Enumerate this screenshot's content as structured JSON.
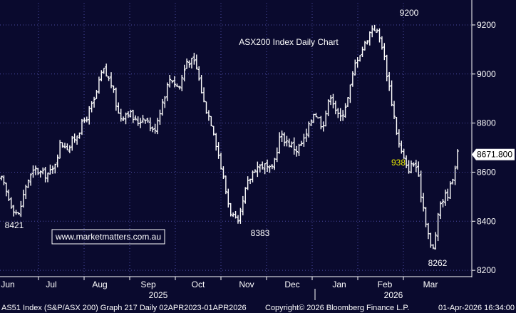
{
  "chart_data": {
    "type": "ohlc",
    "title": "ASX200 Index Daily Chart",
    "watermark": "www.marketmatters.com.au",
    "y_axis": {
      "position": "right",
      "ylim": [
        8180,
        9290
      ],
      "ticks": [
        8200,
        8400,
        8600,
        8800,
        9000,
        9200
      ]
    },
    "x_axis": {
      "months": [
        "Jun",
        "Jul",
        "Aug",
        "Sep",
        "Oct",
        "Nov",
        "Dec",
        "Jan",
        "Feb",
        "Mar"
      ],
      "years": [
        "2025",
        "2026"
      ]
    },
    "last_value_label": "8671.800",
    "annotations": [
      {
        "text": "8421",
        "value": 8421,
        "color": "#ffffff"
      },
      {
        "text": "8383",
        "value": 8383,
        "color": "#ffffff"
      },
      {
        "text": "9200",
        "value": 9200,
        "color": "#ffffff"
      },
      {
        "text": "938",
        "value": 938,
        "color": "#e8e800"
      },
      {
        "text": "8262",
        "value": 8262,
        "color": "#ffffff"
      }
    ],
    "anchors": [
      [
        "Jun",
        8570
      ],
      [
        "Jun",
        8480
      ],
      [
        "Jun",
        8421
      ],
      [
        "Jun",
        8560
      ],
      [
        "Jun",
        8610
      ],
      [
        "Jun",
        8590
      ],
      [
        "Jul",
        8600
      ],
      [
        "Jul",
        8720
      ],
      [
        "Jul",
        8700
      ],
      [
        "Jul",
        8760
      ],
      [
        "Aug",
        8820
      ],
      [
        "Aug",
        8890
      ],
      [
        "Aug",
        9020
      ],
      [
        "Aug",
        8960
      ],
      [
        "Aug",
        8820
      ],
      [
        "Sep",
        8850
      ],
      [
        "Sep",
        8800
      ],
      [
        "Sep",
        8830
      ],
      [
        "Sep",
        8760
      ],
      [
        "Sep",
        8880
      ],
      [
        "Oct",
        8990
      ],
      [
        "Oct",
        8940
      ],
      [
        "Oct",
        9060
      ],
      [
        "Oct",
        9040
      ],
      [
        "Oct",
        8880
      ],
      [
        "Nov",
        8790
      ],
      [
        "Nov",
        8620
      ],
      [
        "Nov",
        8450
      ],
      [
        "Nov",
        8383
      ],
      [
        "Nov",
        8540
      ],
      [
        "Nov",
        8620
      ],
      [
        "Dec",
        8630
      ],
      [
        "Dec",
        8600
      ],
      [
        "Dec",
        8750
      ],
      [
        "Dec",
        8720
      ],
      [
        "Dec",
        8690
      ],
      [
        "Jan",
        8740
      ],
      [
        "Jan",
        8850
      ],
      [
        "Jan",
        8790
      ],
      [
        "Jan",
        8920
      ],
      [
        "Jan",
        8810
      ],
      [
        "Feb",
        8900
      ],
      [
        "Feb",
        9060
      ],
      [
        "Feb",
        9120
      ],
      [
        "Feb",
        9200
      ],
      [
        "Feb",
        9130
      ],
      [
        "Mar",
        8930
      ],
      [
        "Mar",
        8720
      ],
      [
        "Mar",
        8610
      ],
      [
        "Mar",
        8640
      ],
      [
        "Mar",
        8450
      ],
      [
        "Mar",
        8262
      ],
      [
        "Mar",
        8480
      ],
      [
        "Mar",
        8520
      ],
      [
        "Mar",
        8671.8
      ]
    ]
  },
  "footer": {
    "left": "AS51 Index (S&P/ASX 200) Graph 217 Daily 02APR2023-01APR2026",
    "middle": "Copyright© 2026 Bloomberg Finance L.P.",
    "right": "01-Apr-2026 16:34:00"
  },
  "colors": {
    "background": "#0a0a2e",
    "plot_background": "#0a0a2e",
    "grid": "#4a4aa0",
    "bars": "#ffffff",
    "title": "#5cd65c",
    "highlight_label": "#e8e800"
  }
}
